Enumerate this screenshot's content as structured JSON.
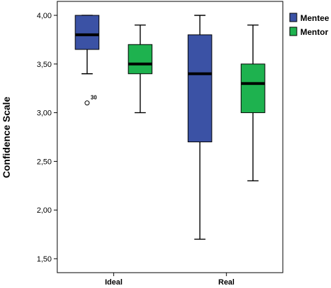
{
  "chart_data": {
    "type": "boxplot",
    "ylabel": "Confidence Scale",
    "xlabel": "",
    "ylim": [
      1.45,
      4.05
    ],
    "yticks": [
      "1,50",
      "2,00",
      "2,50",
      "3,00",
      "3,50",
      "4,00"
    ],
    "ytick_values": [
      1.5,
      2.0,
      2.5,
      3.0,
      3.5,
      4.0
    ],
    "categories": [
      "Ideal",
      "Real"
    ],
    "legend_position": "right",
    "series": [
      {
        "name": "Mentee",
        "color": "#3b52a5",
        "boxes": [
          {
            "category": "Ideal",
            "min": 3.4,
            "q1": 3.65,
            "median": 3.8,
            "q3": 4.0,
            "max": 4.0,
            "outliers": [
              {
                "value": 3.1,
                "label": "30"
              }
            ]
          },
          {
            "category": "Real",
            "min": 1.7,
            "q1": 2.7,
            "median": 3.4,
            "q3": 3.8,
            "max": 4.0,
            "outliers": []
          }
        ]
      },
      {
        "name": "Mentor",
        "color": "#1eb24f",
        "boxes": [
          {
            "category": "Ideal",
            "min": 3.0,
            "q1": 3.4,
            "median": 3.5,
            "q3": 3.7,
            "max": 3.9,
            "outliers": []
          },
          {
            "category": "Real",
            "min": 2.3,
            "q1": 3.0,
            "median": 3.3,
            "q3": 3.5,
            "max": 3.9,
            "outliers": []
          }
        ]
      }
    ]
  }
}
